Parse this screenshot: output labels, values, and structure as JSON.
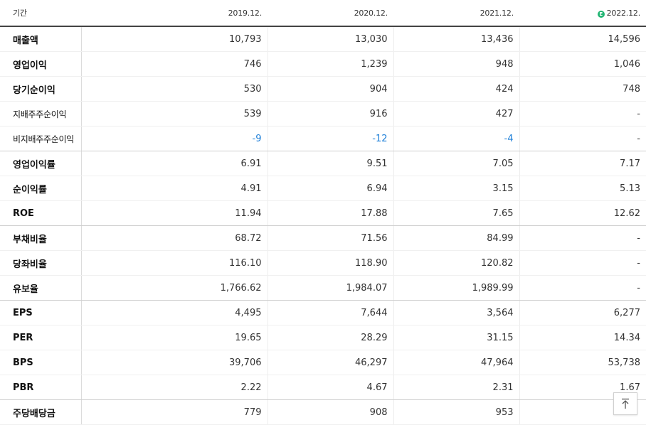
{
  "header": {
    "period_label": "기간",
    "periods": [
      "2019.12.",
      "2020.12.",
      "2021.12.",
      "2022.12."
    ],
    "estimate_badge": "E"
  },
  "rows": [
    {
      "label": "매출액",
      "values": [
        "10,793",
        "13,030",
        "13,436",
        "14,596"
      ]
    },
    {
      "label": "영업이익",
      "values": [
        "746",
        "1,239",
        "948",
        "1,046"
      ]
    },
    {
      "label": "당기순이익",
      "values": [
        "530",
        "904",
        "424",
        "748"
      ]
    },
    {
      "label": "지배주주순이익",
      "values": [
        "539",
        "916",
        "427",
        "-"
      ]
    },
    {
      "label": "비지배주주순이익",
      "values": [
        "-9",
        "-12",
        "-4",
        "-"
      ]
    },
    {
      "label": "영업이익률",
      "values": [
        "6.91",
        "9.51",
        "7.05",
        "7.17"
      ]
    },
    {
      "label": "순이익률",
      "values": [
        "4.91",
        "6.94",
        "3.15",
        "5.13"
      ]
    },
    {
      "label": "ROE",
      "values": [
        "11.94",
        "17.88",
        "7.65",
        "12.62"
      ]
    },
    {
      "label": "부채비율",
      "values": [
        "68.72",
        "71.56",
        "84.99",
        "-"
      ]
    },
    {
      "label": "당좌비율",
      "values": [
        "116.10",
        "118.90",
        "120.82",
        "-"
      ]
    },
    {
      "label": "유보율",
      "values": [
        "1,766.62",
        "1,984.07",
        "1,989.99",
        "-"
      ]
    },
    {
      "label": "EPS",
      "values": [
        "4,495",
        "7,644",
        "3,564",
        "6,277"
      ]
    },
    {
      "label": "PER",
      "values": [
        "19.65",
        "28.29",
        "31.15",
        "14.34"
      ]
    },
    {
      "label": "BPS",
      "values": [
        "39,706",
        "46,297",
        "47,964",
        "53,738"
      ]
    },
    {
      "label": "PBR",
      "values": [
        "2.22",
        "4.67",
        "2.31",
        "1.67"
      ]
    },
    {
      "label": "주당배당금",
      "values": [
        "779",
        "908",
        "953",
        ""
      ]
    }
  ],
  "colors": {
    "negative": "#1d7fd8",
    "estimate_badge": "#22b573"
  }
}
